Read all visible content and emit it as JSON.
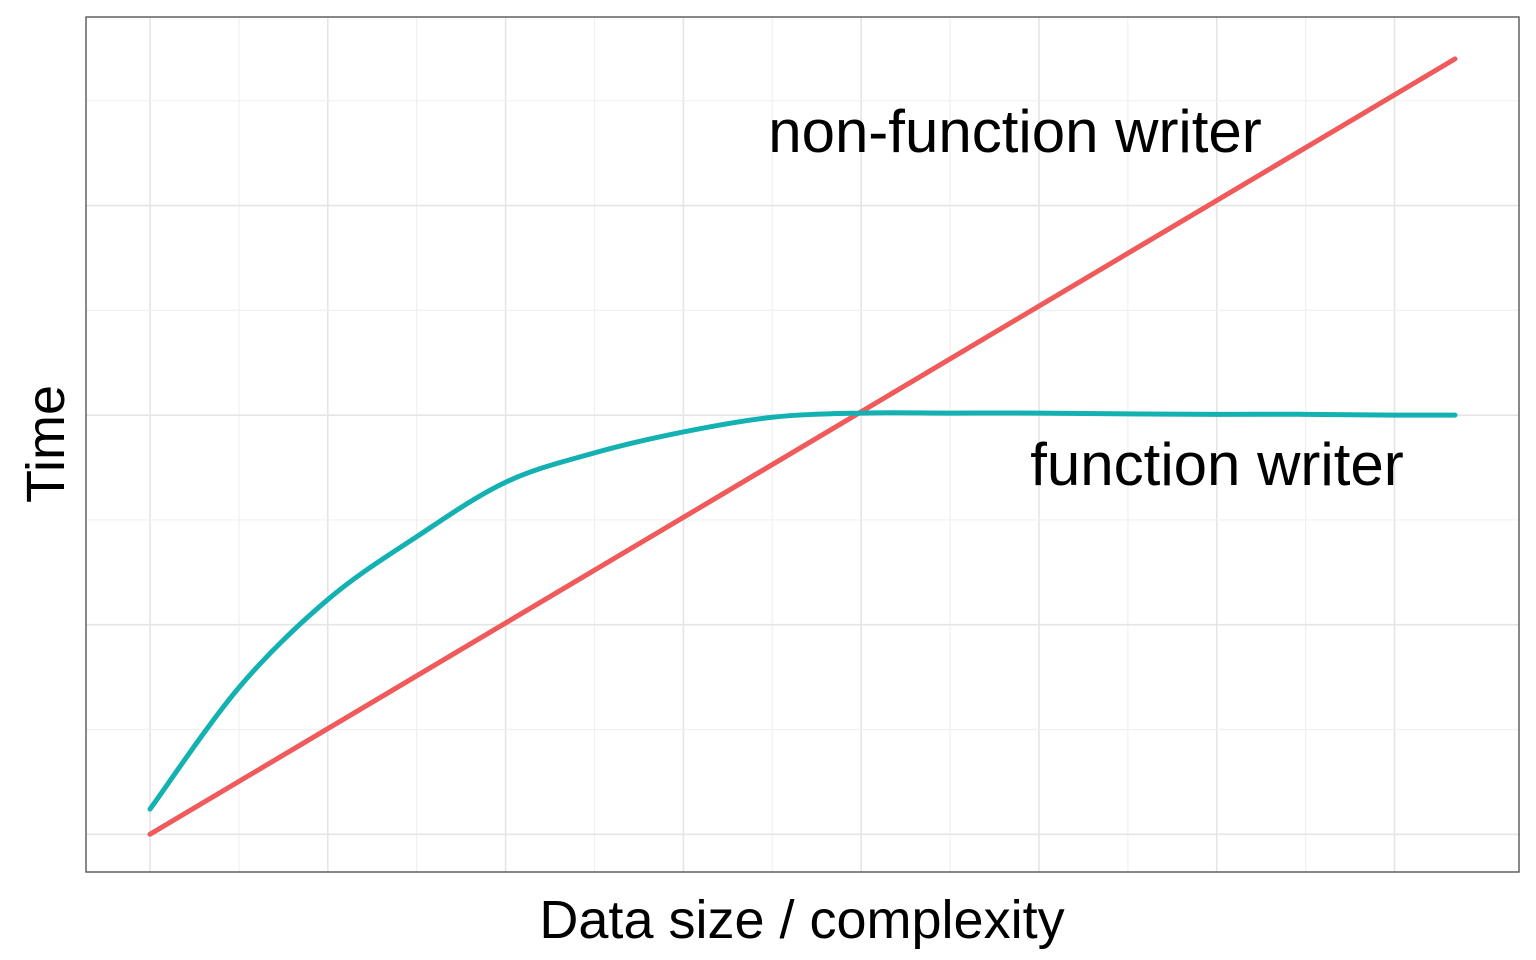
{
  "chart_data": {
    "type": "line",
    "xlabel": "Data size / complexity",
    "ylabel": "Time",
    "xlim": [
      -0.18,
      3.85
    ],
    "ylim": [
      -0.09,
      1.95
    ],
    "grid": true,
    "legend": "none",
    "series": [
      {
        "name": "non-function writer",
        "color": "#F05A5A",
        "x": [
          0,
          3.67
        ],
        "y": [
          0,
          1.85
        ]
      },
      {
        "name": "function writer",
        "color": "#14B1B3",
        "x": [
          0,
          0.25,
          0.5,
          0.75,
          1.0,
          1.25,
          1.5,
          1.75,
          2.0,
          2.25,
          2.5,
          2.75,
          3.0,
          3.25,
          3.5,
          3.67
        ],
        "y": [
          0.06,
          0.35,
          0.56,
          0.71,
          0.84,
          0.91,
          0.96,
          0.995,
          1.005,
          1.005,
          1.005,
          1.003,
          1.002,
          1.002,
          1.0,
          1.0
        ]
      }
    ]
  }
}
